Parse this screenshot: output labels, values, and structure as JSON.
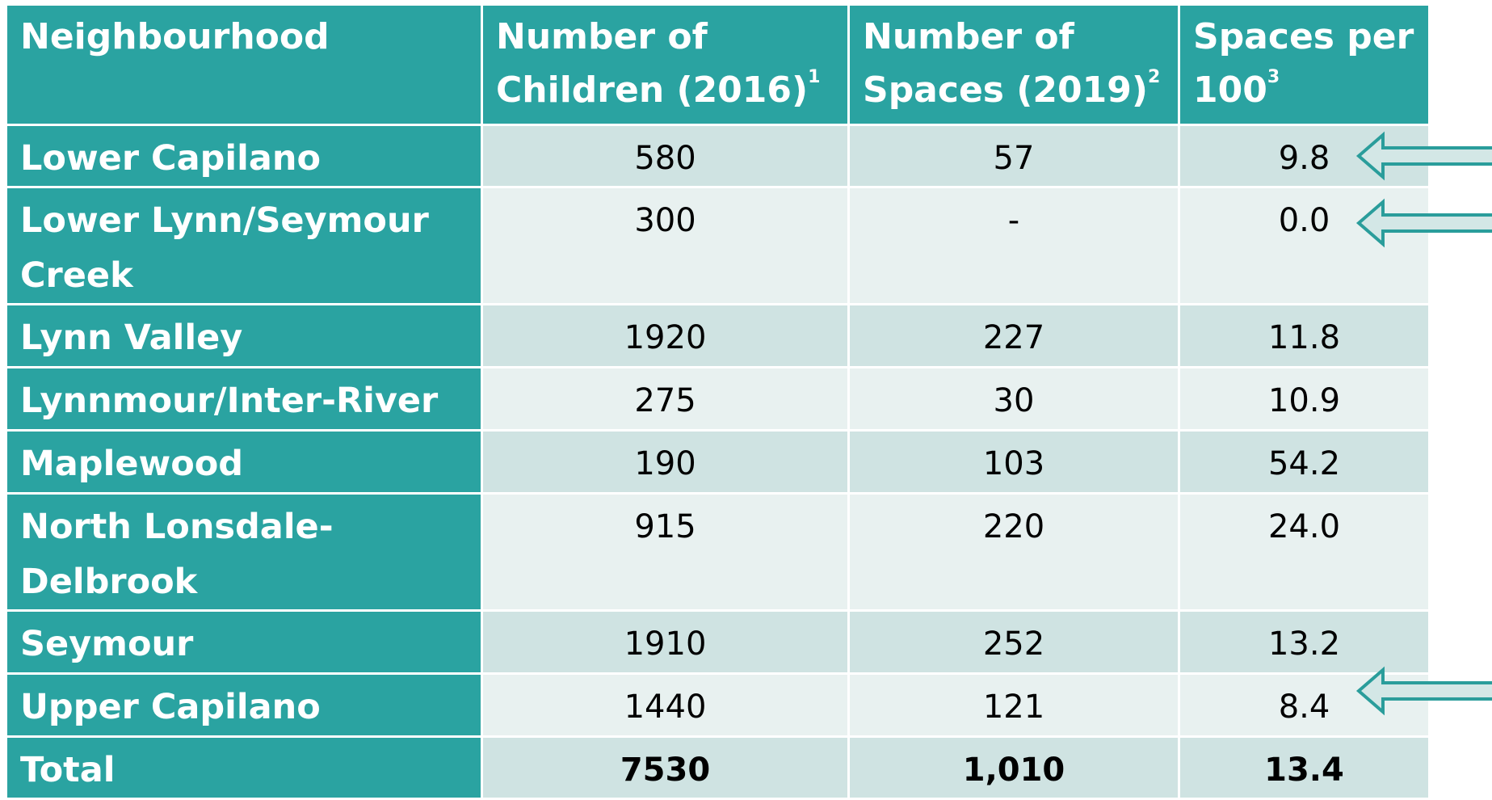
{
  "table": {
    "header": [
      {
        "text": "Neighbourhood"
      },
      {
        "text": "Number of Children (2016)",
        "note": "1"
      },
      {
        "text": "Number of Spaces (2019)",
        "note": "2"
      },
      {
        "text": "Spaces per 100",
        "note": "3"
      }
    ],
    "rows": [
      [
        "Lower Capilano",
        "580",
        "57",
        "9.8"
      ],
      [
        "Lower Lynn/Seymour Creek",
        "300",
        "-",
        "0.0"
      ],
      [
        "Lynn Valley",
        "1920",
        "227",
        "11.8"
      ],
      [
        "Lynnmour/Inter-River",
        "275",
        "30",
        "10.9"
      ],
      [
        "Maplewood",
        "190",
        "103",
        "54.2"
      ],
      [
        "North Lonsdale-Delbrook",
        "915",
        "220",
        "24.0"
      ],
      [
        "Seymour",
        "1910",
        "252",
        "13.2"
      ],
      [
        "Upper Capilano",
        "1440",
        "121",
        "8.4"
      ],
      [
        "Total",
        "7530",
        "1,010",
        "13.4"
      ]
    ]
  }
}
